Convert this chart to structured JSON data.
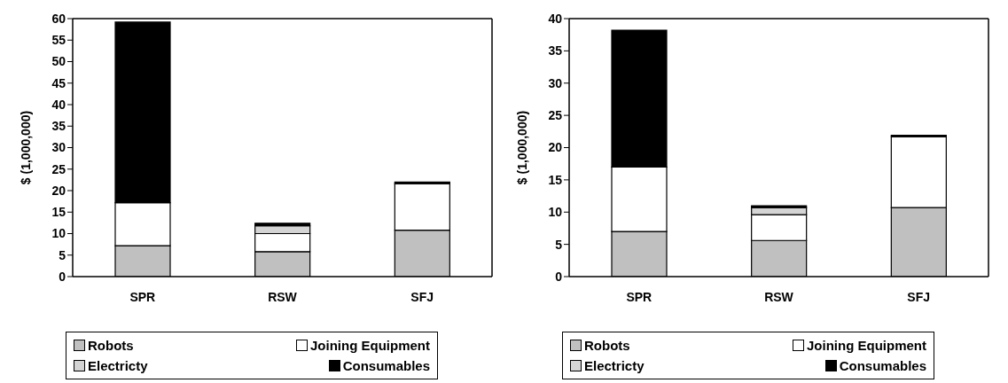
{
  "chart_data": [
    {
      "type": "bar",
      "stacked": true,
      "ylabel": "$ (1,000,000)",
      "categories": [
        "SPR",
        "RSW",
        "SFJ"
      ],
      "ylim": [
        0,
        60
      ],
      "yticks": [
        0,
        5,
        10,
        15,
        20,
        25,
        30,
        35,
        40,
        45,
        50,
        55,
        60
      ],
      "legend": "bottom",
      "series": [
        {
          "name": "Robots",
          "color": "#c0c0c0",
          "values": [
            7.2,
            5.8,
            10.8
          ]
        },
        {
          "name": "Joining Equipment",
          "color": "#ffffff",
          "values": [
            10,
            4.2,
            10.8
          ]
        },
        {
          "name": "Electricty",
          "color": "#d4d4d4",
          "values": [
            null,
            1.8,
            null
          ]
        },
        {
          "name": "Consumables",
          "color": "#000000",
          "values": [
            42,
            0.6,
            0.4
          ]
        }
      ]
    },
    {
      "type": "bar",
      "stacked": true,
      "ylabel": "$ (1,000,000)",
      "categories": [
        "SPR",
        "RSW",
        "SFJ"
      ],
      "ylim": [
        0,
        40
      ],
      "yticks": [
        0,
        5,
        10,
        15,
        20,
        25,
        30,
        35,
        40
      ],
      "legend": "bottom",
      "series": [
        {
          "name": "Robots",
          "color": "#c0c0c0",
          "values": [
            7,
            5.6,
            10.7
          ]
        },
        {
          "name": "Joining Equipment",
          "color": "#ffffff",
          "values": [
            10,
            4,
            11
          ]
        },
        {
          "name": "Electricty",
          "color": "#d4d4d4",
          "values": [
            null,
            1.1,
            null
          ]
        },
        {
          "name": "Consumables",
          "color": "#000000",
          "values": [
            21.2,
            0.3,
            0.2
          ]
        }
      ]
    }
  ]
}
